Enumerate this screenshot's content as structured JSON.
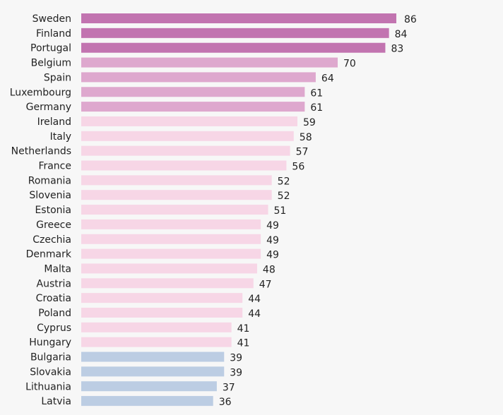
{
  "chart_data": {
    "type": "bar",
    "orientation": "horizontal",
    "categories": [
      "Sweden",
      "Finland",
      "Portugal",
      "Belgium",
      "Spain",
      "Luxembourg",
      "Germany",
      "Ireland",
      "Italy",
      "Netherlands",
      "France",
      "Romania",
      "Slovenia",
      "Estonia",
      "Greece",
      "Czechia",
      "Denmark",
      "Malta",
      "Austria",
      "Croatia",
      "Poland",
      "Cyprus",
      "Hungary",
      "Bulgaria",
      "Slovakia",
      "Lithuania",
      "Latvia"
    ],
    "values": [
      86,
      84,
      83,
      70,
      64,
      61,
      61,
      59,
      58,
      57,
      56,
      52,
      52,
      51,
      49,
      49,
      49,
      48,
      47,
      44,
      44,
      41,
      41,
      39,
      39,
      37,
      36
    ],
    "xlim": [
      0,
      86
    ],
    "grid": false,
    "legend": "none",
    "colors": {
      "tier_high": "#c274b0",
      "tier_upper": "#dea8ce",
      "tier_mid": "#f7d6e6",
      "tier_low": "#bccde3"
    },
    "bar_tiers": [
      "tier_high",
      "tier_high",
      "tier_high",
      "tier_upper",
      "tier_upper",
      "tier_upper",
      "tier_upper",
      "tier_mid",
      "tier_mid",
      "tier_mid",
      "tier_mid",
      "tier_mid",
      "tier_mid",
      "tier_mid",
      "tier_mid",
      "tier_mid",
      "tier_mid",
      "tier_mid",
      "tier_mid",
      "tier_mid",
      "tier_mid",
      "tier_mid",
      "tier_mid",
      "tier_low",
      "tier_low",
      "tier_low",
      "tier_low"
    ]
  }
}
